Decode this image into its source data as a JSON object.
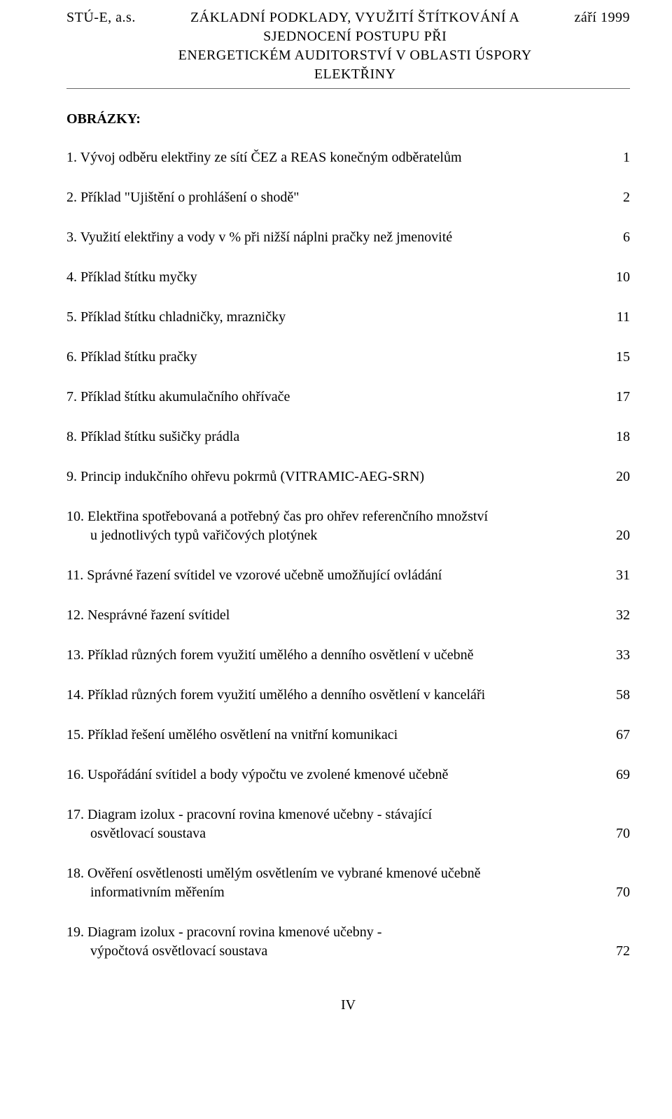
{
  "header": {
    "left": "STÚ-E, a.s.",
    "center_line1": "ZÁKLADNÍ PODKLADY, VYUŽITÍ ŠTÍTKOVÁNÍ A SJEDNOCENÍ POSTUPU PŘI",
    "center_line2": "ENERGETICKÉM AUDITORSTVÍ V OBLASTI ÚSPORY ELEKTŘINY",
    "right": "září 1999"
  },
  "section_title": "OBRÁZKY:",
  "items": [
    {
      "text": "1. Vývoj odběru elektřiny ze sítí ČEZ a REAS konečným odběratelům",
      "page": "1"
    },
    {
      "text": "2. Příklad \"Ujištění o prohlášení o shodě\"",
      "page": "2"
    },
    {
      "text": "3. Využití elektřiny a vody v % při nižší náplni pračky než jmenovité",
      "page": "6"
    },
    {
      "text": "4. Příklad štítku myčky",
      "page": "10"
    },
    {
      "text": "5. Příklad štítku chladničky, mrazničky",
      "page": "11"
    },
    {
      "text": "6. Příklad štítku pračky",
      "page": "15"
    },
    {
      "text": "7. Příklad štítku akumulačního ohřívače",
      "page": "17"
    },
    {
      "text": "8. Příklad štítku sušičky prádla",
      "page": "18"
    },
    {
      "text": "9. Princip indukčního ohřevu pokrmů (VITRAMIC-AEG-SRN)",
      "page": "20"
    },
    {
      "text": "10. Elektřina spotřebovaná a potřebný čas pro ohřev referenčního množství",
      "cont": "u jednotlivých typů vařičových plotýnek",
      "page": "20"
    },
    {
      "text": "11. Správné řazení svítidel ve vzorové učebně umožňující ovládání",
      "page": "31"
    },
    {
      "text": "12. Nesprávné řazení svítidel",
      "page": "32"
    },
    {
      "text": "13. Příklad různých forem využití umělého a denního osvětlení v učebně",
      "page": "33"
    },
    {
      "text": "14. Příklad různých forem využití umělého a denního osvětlení v kanceláři",
      "page": "58"
    },
    {
      "text": "15. Příklad řešení umělého osvětlení na vnitřní komunikaci",
      "page": "67"
    },
    {
      "text": "16. Uspořádání svítidel a body výpočtu ve zvolené kmenové učebně",
      "page": "69"
    },
    {
      "text": "17. Diagram izolux - pracovní rovina kmenové učebny - stávající",
      "cont": "osvětlovací soustava",
      "page": "70"
    },
    {
      "text": "18. Ověření osvětlenosti umělým osvětlením ve vybrané kmenové učebně",
      "cont": "informativním měřením",
      "page": "70"
    },
    {
      "text": "19. Diagram izolux - pracovní rovina kmenové učebny -",
      "cont": "výpočtová osvětlovací soustava",
      "page": "72"
    }
  ],
  "footer": "IV"
}
